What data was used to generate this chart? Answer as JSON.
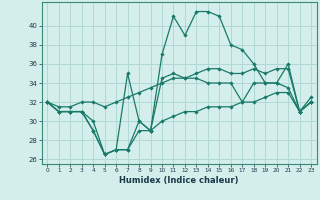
{
  "xlabel": "Humidex (Indice chaleur)",
  "bg_color": "#d4eeeb",
  "grid_color": "#b0d8d4",
  "line_color": "#1a7a6a",
  "xlim": [
    -0.5,
    23.5
  ],
  "ylim": [
    25.5,
    42.5
  ],
  "yticks": [
    26,
    28,
    30,
    32,
    34,
    36,
    38,
    40
  ],
  "xticks": [
    0,
    1,
    2,
    3,
    4,
    5,
    6,
    7,
    8,
    9,
    10,
    11,
    12,
    13,
    14,
    15,
    16,
    17,
    18,
    19,
    20,
    21,
    22,
    23
  ],
  "series": [
    [
      32,
      31,
      31,
      31,
      29,
      26.5,
      27,
      27,
      30,
      29,
      37,
      41,
      39,
      41.5,
      41.5,
      41,
      38,
      37.5,
      36,
      34,
      34,
      36,
      31,
      32
    ],
    [
      32,
      31,
      31,
      31,
      29,
      26.5,
      27,
      35,
      30,
      29,
      34.5,
      35,
      34.5,
      34.5,
      34,
      34,
      34,
      32,
      34,
      34,
      34,
      33.5,
      31,
      32
    ],
    [
      32,
      31.5,
      31.5,
      32,
      32,
      31.5,
      32,
      32.5,
      33,
      33.5,
      34,
      34.5,
      34.5,
      35,
      35.5,
      35.5,
      35,
      35,
      35.5,
      35,
      35.5,
      35.5,
      31,
      32.5
    ],
    [
      32,
      31,
      31,
      31,
      30,
      26.5,
      27,
      27,
      29,
      29,
      30,
      30.5,
      31,
      31,
      31.5,
      31.5,
      31.5,
      32,
      32,
      32.5,
      33,
      33,
      31,
      32
    ]
  ]
}
